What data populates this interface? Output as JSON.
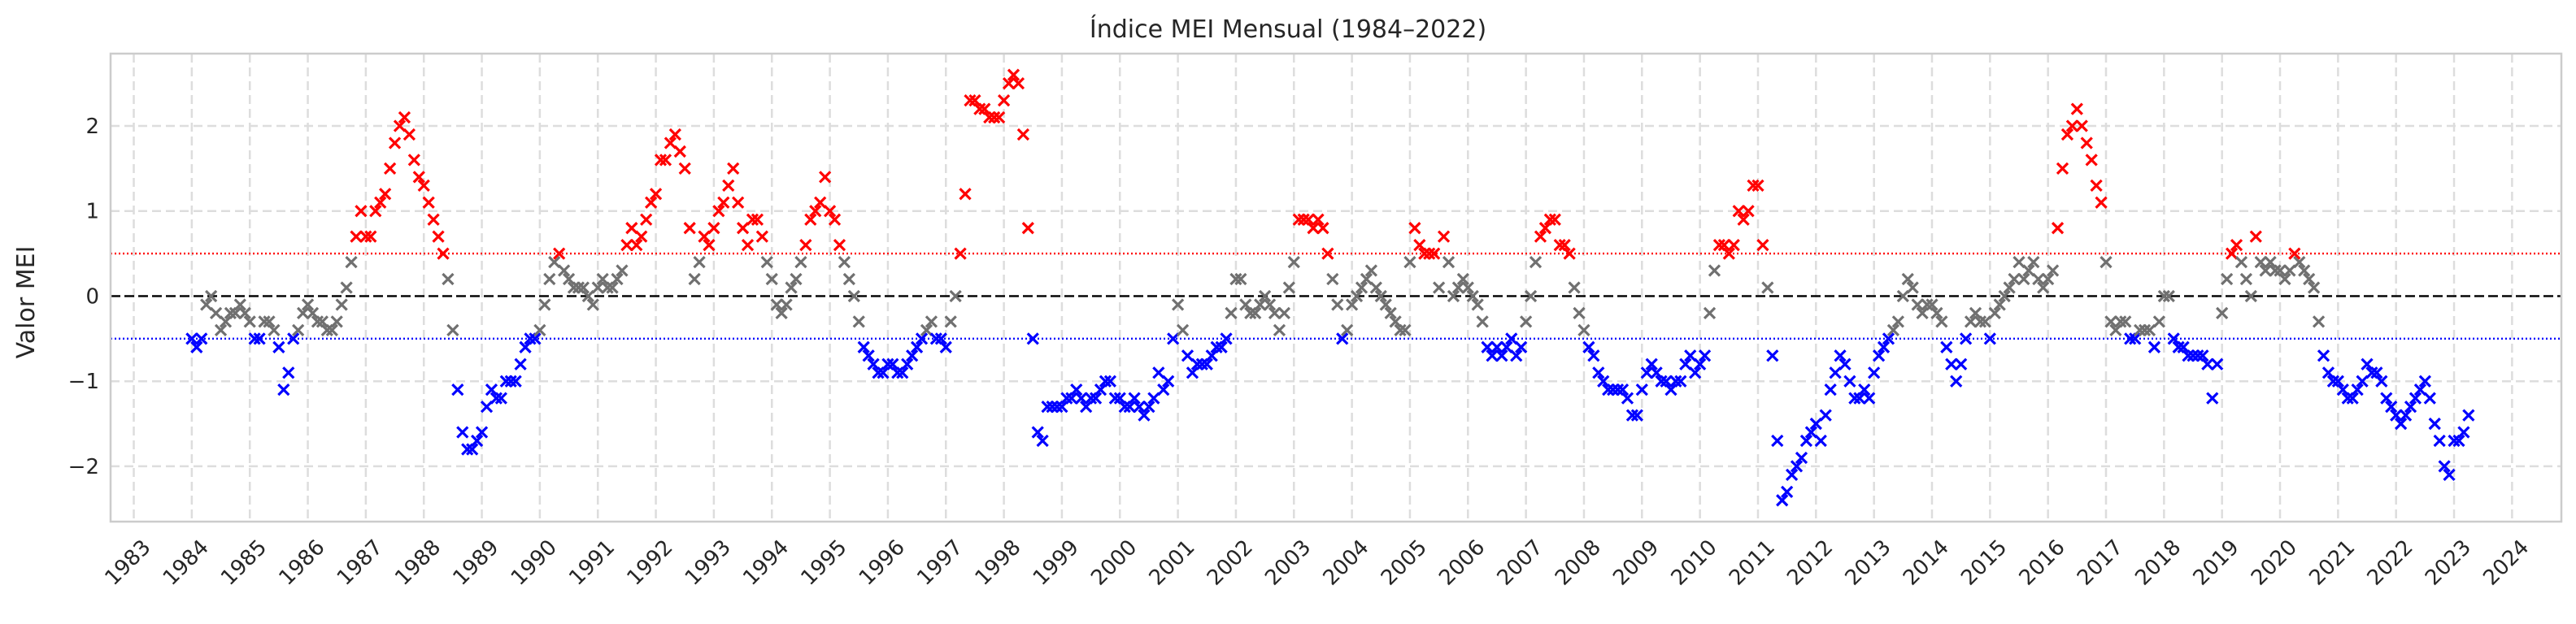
{
  "chart_data": {
    "type": "scatter",
    "title": "Índice MEI Mensual (1984–2022)",
    "xlabel": "",
    "ylabel": "Valor MEI",
    "xlim": [
      1982.6,
      2024.85
    ],
    "ylim": [
      -2.65,
      2.85
    ],
    "x_ticks": [
      "1983",
      "1984",
      "1985",
      "1986",
      "1987",
      "1988",
      "1989",
      "1990",
      "1991",
      "1992",
      "1993",
      "1994",
      "1995",
      "1996",
      "1997",
      "1998",
      "1999",
      "2000",
      "2001",
      "2002",
      "2003",
      "2004",
      "2005",
      "2006",
      "2007",
      "2008",
      "2009",
      "2010",
      "2011",
      "2012",
      "2013",
      "2014",
      "2015",
      "2016",
      "2017",
      "2018",
      "2019",
      "2020",
      "2021",
      "2022",
      "2023",
      "2024"
    ],
    "y_ticks": [
      -2,
      -1,
      0,
      1,
      2
    ],
    "grid": true,
    "marker": "x",
    "reference_lines": [
      {
        "y": 0.5,
        "color": "#ff0000",
        "style": "dotted"
      },
      {
        "y": 0,
        "color": "#000000",
        "style": "dashed"
      },
      {
        "y": -0.5,
        "color": "#0000ff",
        "style": "dotted"
      }
    ],
    "thresholds": {
      "el_nino": 0.5,
      "la_nina": -0.5
    },
    "colors": {
      "el_nino": "#ff0000",
      "la_nina": "#0000ff",
      "neutral": "#707070"
    },
    "anchors": [
      [
        1984.0,
        -0.5
      ],
      [
        1984.15,
        -0.6
      ],
      [
        1984.3,
        0.1
      ],
      [
        1984.5,
        -0.4
      ],
      [
        1984.7,
        -0.2
      ],
      [
        1984.85,
        -0.1
      ],
      [
        1985.0,
        -0.3
      ],
      [
        1985.1,
        -0.6
      ],
      [
        1985.3,
        -0.2
      ],
      [
        1985.5,
        -0.6
      ],
      [
        1985.6,
        -1.2
      ],
      [
        1985.75,
        -0.5
      ],
      [
        1986.0,
        -0.1
      ],
      [
        1986.2,
        -0.3
      ],
      [
        1986.35,
        -0.4
      ],
      [
        1986.5,
        -0.3
      ],
      [
        1986.65,
        0.0
      ],
      [
        1986.75,
        0.4
      ],
      [
        1986.9,
        1.0
      ],
      [
        1987.05,
        0.6
      ],
      [
        1987.2,
        1.1
      ],
      [
        1987.35,
        1.2
      ],
      [
        1987.45,
        1.6
      ],
      [
        1987.55,
        2.0
      ],
      [
        1987.65,
        2.1
      ],
      [
        1987.75,
        1.9
      ],
      [
        1987.85,
        1.5
      ],
      [
        1987.95,
        1.3
      ],
      [
        1988.05,
        1.2
      ],
      [
        1988.15,
        0.9
      ],
      [
        1988.3,
        0.6
      ],
      [
        1988.4,
        0.3
      ],
      [
        1988.5,
        -0.4
      ],
      [
        1988.6,
        -1.2
      ],
      [
        1988.7,
        -1.8
      ],
      [
        1988.85,
        -1.8
      ],
      [
        1989.0,
        -1.6
      ],
      [
        1989.15,
        -1.1
      ],
      [
        1989.3,
        -1.2
      ],
      [
        1989.45,
        -1.0
      ],
      [
        1989.55,
        -1.1
      ],
      [
        1989.7,
        -0.7
      ],
      [
        1989.85,
        -0.5
      ],
      [
        1990.0,
        -0.4
      ],
      [
        1990.15,
        0.1
      ],
      [
        1990.3,
        0.6
      ],
      [
        1990.45,
        0.2
      ],
      [
        1990.6,
        0.1
      ],
      [
        1990.75,
        0.1
      ],
      [
        1990.9,
        -0.1
      ],
      [
        1991.05,
        0.2
      ],
      [
        1991.2,
        0.1
      ],
      [
        1991.35,
        0.2
      ],
      [
        1991.45,
        0.4
      ],
      [
        1991.6,
        0.9
      ],
      [
        1991.7,
        0.5
      ],
      [
        1991.85,
        1.0
      ],
      [
        1992.0,
        1.2
      ],
      [
        1992.1,
        1.7
      ],
      [
        1992.2,
        1.6
      ],
      [
        1992.3,
        2.0
      ],
      [
        1992.4,
        1.7
      ],
      [
        1992.5,
        1.5
      ],
      [
        1992.6,
        0.6
      ],
      [
        1992.7,
        0.0
      ],
      [
        1992.8,
        0.7
      ],
      [
        1992.9,
        0.6
      ],
      [
        1993.0,
        0.8
      ],
      [
        1993.1,
        1.0
      ],
      [
        1993.2,
        1.2
      ],
      [
        1993.35,
        1.5
      ],
      [
        1993.45,
        0.9
      ],
      [
        1993.6,
        0.6
      ],
      [
        1993.7,
        1.0
      ],
      [
        1993.85,
        0.7
      ],
      [
        1993.95,
        0.3
      ],
      [
        1994.05,
        0.0
      ],
      [
        1994.15,
        -0.2
      ],
      [
        1994.3,
        0.0
      ],
      [
        1994.45,
        0.3
      ],
      [
        1994.6,
        0.6
      ],
      [
        1994.7,
        1.0
      ],
      [
        1994.85,
        1.1
      ],
      [
        1994.9,
        1.5
      ],
      [
        1995.0,
        1.0
      ],
      [
        1995.1,
        0.9
      ],
      [
        1995.2,
        0.5
      ],
      [
        1995.3,
        0.2
      ],
      [
        1995.4,
        0.1
      ],
      [
        1995.5,
        -0.3
      ],
      [
        1995.6,
        -0.7
      ],
      [
        1995.75,
        -0.8
      ],
      [
        1995.9,
        -0.9
      ],
      [
        1996.05,
        -0.8
      ],
      [
        1996.2,
        -0.9
      ],
      [
        1996.35,
        -0.8
      ],
      [
        1996.5,
        -0.6
      ],
      [
        1996.6,
        -0.5
      ],
      [
        1996.75,
        -0.3
      ],
      [
        1996.85,
        -0.5
      ],
      [
        1997.0,
        -0.6
      ],
      [
        1997.1,
        -0.3
      ],
      [
        1997.2,
        0.2
      ],
      [
        1997.3,
        0.7
      ],
      [
        1997.4,
        2.3
      ],
      [
        1997.5,
        2.3
      ],
      [
        1997.6,
        2.2
      ],
      [
        1997.75,
        2.1
      ],
      [
        1997.9,
        2.1
      ],
      [
        1998.0,
        2.3
      ],
      [
        1998.1,
        2.5
      ],
      [
        1998.2,
        2.6
      ],
      [
        1998.3,
        2.3
      ],
      [
        1998.45,
        0.4
      ],
      [
        1998.55,
        -1.5
      ],
      [
        1998.65,
        -1.8
      ],
      [
        1998.75,
        -1.3
      ],
      [
        1998.95,
        -1.3
      ],
      [
        1999.1,
        -1.2
      ],
      [
        1999.25,
        -1.1
      ],
      [
        1999.4,
        -1.3
      ],
      [
        1999.6,
        -1.2
      ],
      [
        1999.8,
        -1.0
      ],
      [
        1999.95,
        -1.2
      ],
      [
        2000.1,
        -1.3
      ],
      [
        2000.25,
        -1.2
      ],
      [
        2000.45,
        -1.4
      ],
      [
        2000.55,
        -1.3
      ],
      [
        2000.65,
        -0.9
      ],
      [
        2000.8,
        -1.2
      ],
      [
        2000.9,
        -0.6
      ],
      [
        2001.0,
        -0.1
      ],
      [
        2001.1,
        -0.5
      ],
      [
        2001.25,
        -0.9
      ],
      [
        2001.4,
        -0.8
      ],
      [
        2001.55,
        -0.8
      ],
      [
        2001.7,
        -0.5
      ],
      [
        2001.8,
        -0.7
      ],
      [
        2001.95,
        0.0
      ],
      [
        2002.05,
        0.4
      ],
      [
        2002.15,
        -0.1
      ],
      [
        2002.3,
        -0.3
      ],
      [
        2002.45,
        0.0
      ],
      [
        2002.6,
        -0.1
      ],
      [
        2002.75,
        -0.4
      ],
      [
        2002.85,
        -0.2
      ],
      [
        2003.0,
        0.4
      ],
      [
        2003.1,
        1.0
      ],
      [
        2003.2,
        0.9
      ],
      [
        2003.3,
        0.8
      ],
      [
        2003.45,
        0.9
      ],
      [
        2003.6,
        0.5
      ],
      [
        2003.75,
        -0.1
      ],
      [
        2003.85,
        -0.6
      ],
      [
        2004.0,
        -0.1
      ],
      [
        2004.15,
        0.1
      ],
      [
        2004.3,
        0.3
      ],
      [
        2004.45,
        0.1
      ],
      [
        2004.6,
        -0.1
      ],
      [
        2004.75,
        -0.3
      ],
      [
        2004.9,
        -0.5
      ],
      [
        2005.05,
        0.8
      ],
      [
        2005.2,
        0.6
      ],
      [
        2005.3,
        0.4
      ],
      [
        2005.4,
        0.6
      ],
      [
        2005.5,
        0.1
      ],
      [
        2005.6,
        0.8
      ],
      [
        2005.75,
        0.0
      ],
      [
        2005.9,
        0.2
      ],
      [
        2006.05,
        0.0
      ],
      [
        2006.2,
        -0.1
      ],
      [
        2006.35,
        -0.7
      ],
      [
        2006.5,
        -0.6
      ],
      [
        2006.6,
        -0.7
      ],
      [
        2006.75,
        -0.5
      ],
      [
        2006.85,
        -0.8
      ],
      [
        2007.0,
        -0.3
      ],
      [
        2007.1,
        0.1
      ],
      [
        2007.2,
        0.6
      ],
      [
        2007.35,
        0.8
      ],
      [
        2007.45,
        1.0
      ],
      [
        2007.6,
        0.6
      ],
      [
        2007.75,
        0.5
      ],
      [
        2007.9,
        -0.2
      ],
      [
        2008.0,
        -0.4
      ],
      [
        2008.15,
        -0.7
      ],
      [
        2008.3,
        -1.0
      ],
      [
        2008.45,
        -1.1
      ],
      [
        2008.6,
        -1.1
      ],
      [
        2008.75,
        -1.2
      ],
      [
        2008.9,
        -1.5
      ],
      [
        2009.05,
        -0.9
      ],
      [
        2009.2,
        -0.8
      ],
      [
        2009.35,
        -1.0
      ],
      [
        2009.5,
        -1.1
      ],
      [
        2009.65,
        -1.0
      ],
      [
        2009.8,
        -0.7
      ],
      [
        2009.95,
        -0.9
      ],
      [
        2010.1,
        -0.7
      ],
      [
        2010.2,
        0.0
      ],
      [
        2010.3,
        0.6
      ],
      [
        2010.4,
        0.6
      ],
      [
        2010.55,
        0.4
      ],
      [
        2010.65,
        1.0
      ],
      [
        2010.8,
        0.9
      ],
      [
        2010.9,
        1.3
      ],
      [
        2011.0,
        1.3
      ],
      [
        2011.1,
        0.5
      ],
      [
        2011.2,
        -0.1
      ],
      [
        2011.3,
        -1.3
      ],
      [
        2011.4,
        -2.4
      ],
      [
        2011.5,
        -2.3
      ],
      [
        2011.6,
        -2.1
      ],
      [
        2011.75,
        -1.9
      ],
      [
        2011.85,
        -1.7
      ],
      [
        2012.0,
        -1.5
      ],
      [
        2012.1,
        -1.7
      ],
      [
        2012.2,
        -1.2
      ],
      [
        2012.3,
        -1.0
      ],
      [
        2012.4,
        -0.7
      ],
      [
        2012.5,
        -0.8
      ],
      [
        2012.6,
        -1.1
      ],
      [
        2012.7,
        -1.3
      ],
      [
        2012.85,
        -1.1
      ],
      [
        2012.95,
        -1.2
      ],
      [
        2013.05,
        -0.7
      ],
      [
        2013.2,
        -0.6
      ],
      [
        2013.3,
        -0.4
      ],
      [
        2013.45,
        -0.3
      ],
      [
        2013.55,
        0.3
      ],
      [
        2013.7,
        0.0
      ],
      [
        2013.8,
        -0.2
      ],
      [
        2013.9,
        -0.1
      ],
      [
        2014.0,
        -0.1
      ],
      [
        2014.15,
        -0.3
      ],
      [
        2014.3,
        -0.7
      ],
      [
        2014.4,
        -1.1
      ],
      [
        2014.5,
        -0.8
      ],
      [
        2014.6,
        -0.4
      ],
      [
        2014.75,
        -0.2
      ],
      [
        2014.9,
        -0.3
      ],
      [
        2015.0,
        -0.5
      ],
      [
        2015.1,
        -0.2
      ],
      [
        2015.2,
        0.0
      ],
      [
        2015.35,
        0.1
      ],
      [
        2015.5,
        0.4
      ],
      [
        2015.6,
        0.2
      ],
      [
        2015.75,
        0.4
      ],
      [
        2015.9,
        0.1
      ],
      [
        2016.0,
        0.2
      ],
      [
        2016.1,
        0.3
      ],
      [
        2016.2,
        1.0
      ],
      [
        2016.3,
        1.9
      ],
      [
        2016.4,
        2.0
      ],
      [
        2016.5,
        2.2
      ],
      [
        2016.6,
        1.9
      ],
      [
        2016.7,
        1.8
      ],
      [
        2016.8,
        1.3
      ],
      [
        2016.9,
        1.2
      ],
      [
        2017.0,
        0.4
      ],
      [
        2017.1,
        -0.5
      ],
      [
        2017.2,
        -0.3
      ],
      [
        2017.3,
        -0.3
      ],
      [
        2017.45,
        -0.5
      ],
      [
        2017.6,
        -0.4
      ],
      [
        2017.75,
        -0.4
      ],
      [
        2017.85,
        -0.6
      ],
      [
        2017.95,
        -0.2
      ],
      [
        2018.05,
        0.2
      ],
      [
        2018.15,
        -0.5
      ],
      [
        2018.3,
        -0.6
      ],
      [
        2018.45,
        -0.7
      ],
      [
        2018.6,
        -0.7
      ],
      [
        2018.75,
        -0.8
      ],
      [
        2018.85,
        -1.3
      ],
      [
        2018.95,
        -0.5
      ],
      [
        2019.05,
        0.0
      ],
      [
        2019.15,
        0.5
      ],
      [
        2019.25,
        0.6
      ],
      [
        2019.35,
        0.3
      ],
      [
        2019.5,
        0.0
      ],
      [
        2019.6,
        0.8
      ],
      [
        2019.7,
        0.2
      ],
      [
        2019.8,
        0.4
      ],
      [
        2019.95,
        0.3
      ],
      [
        2020.05,
        0.2
      ],
      [
        2020.15,
        0.3
      ],
      [
        2020.25,
        0.5
      ],
      [
        2020.4,
        0.3
      ],
      [
        2020.55,
        0.2
      ],
      [
        2020.65,
        -0.2
      ],
      [
        2020.75,
        -0.7
      ],
      [
        2020.85,
        -0.9
      ],
      [
        2020.95,
        -1.0
      ],
      [
        2021.05,
        -1.1
      ],
      [
        2021.2,
        -1.2
      ],
      [
        2021.35,
        -1.1
      ],
      [
        2021.5,
        -0.8
      ],
      [
        2021.6,
        -0.9
      ],
      [
        2021.75,
        -1.0
      ],
      [
        2021.85,
        -1.2
      ],
      [
        2021.95,
        -1.4
      ],
      [
        2022.1,
        -1.5
      ],
      [
        2022.25,
        -1.3
      ],
      [
        2022.4,
        -1.1
      ],
      [
        2022.5,
        -1.0
      ],
      [
        2022.6,
        -1.3
      ],
      [
        2022.7,
        -1.6
      ],
      [
        2022.8,
        -1.9
      ],
      [
        2022.9,
        -2.2
      ],
      [
        2023.0,
        -1.7
      ],
      [
        2023.1,
        -1.7
      ],
      [
        2023.2,
        -1.5
      ],
      [
        2023.3,
        -1.3
      ]
    ]
  }
}
